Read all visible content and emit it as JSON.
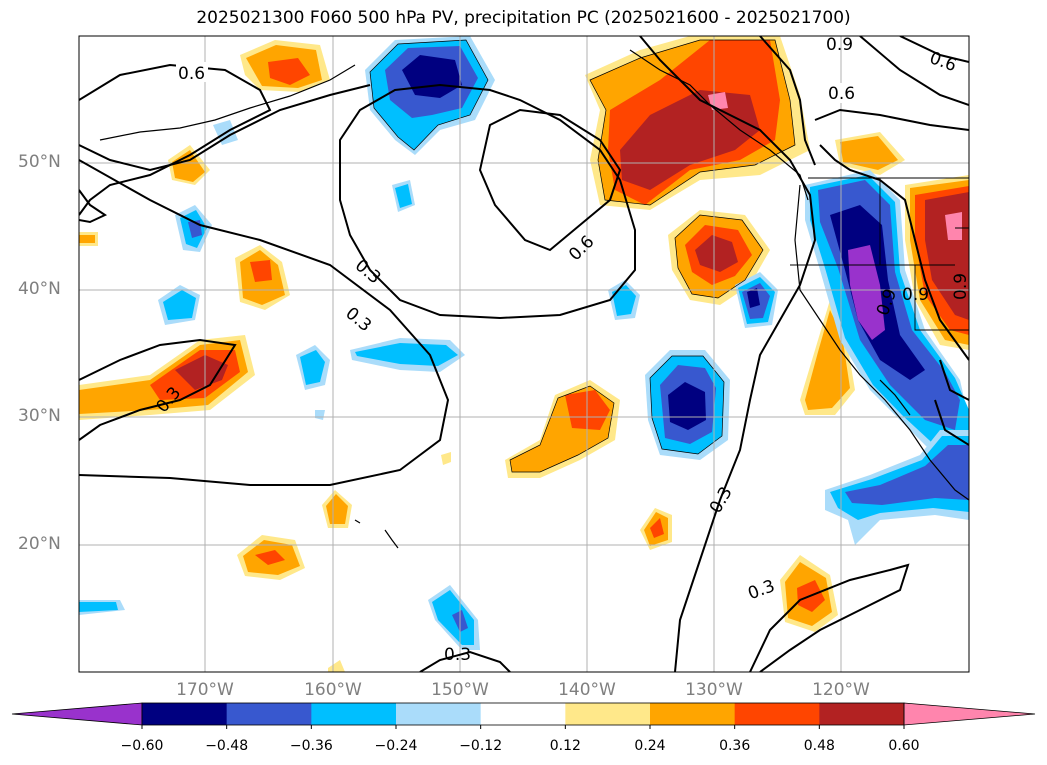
{
  "title": "2025021300 F060 500 hPa PV, precipitation PC (2025021600 - 2025021700)",
  "latitudes": [
    "50°N",
    "40°N",
    "30°N",
    "20°N"
  ],
  "longitudes": [
    "170°W",
    "160°W",
    "150°W",
    "140°W",
    "130°W",
    "120°W"
  ],
  "contour_labels": [
    "0.6",
    "0.6",
    "0.3",
    "0.3",
    "0.3",
    "0.3",
    "0.3",
    "0.3",
    "0.6",
    "0.9",
    "0.9",
    "0.6",
    "0.9",
    "0.9"
  ],
  "colorbar": {
    "ticks": [
      "−0.60",
      "−0.48",
      "−0.36",
      "−0.24",
      "−0.12",
      "0.12",
      "0.24",
      "0.36",
      "0.48",
      "0.60"
    ],
    "colors": [
      "#9932cc",
      "#000080",
      "#3858cf",
      "#00bfff",
      "#aadcfa",
      "#ffffff",
      "#ffe88a",
      "#ffa500",
      "#ff4500",
      "#b22222",
      "#ff85ad"
    ]
  },
  "palette": {
    "purple": "#9932cc",
    "navy": "#000080",
    "royal": "#3858cf",
    "sky": "#00bfff",
    "lightblue": "#aadcfa",
    "lightyellow": "#ffe88a",
    "orange": "#ffa500",
    "redorange": "#ff4500",
    "firebrick": "#b22222",
    "pink": "#ff85ad"
  }
}
